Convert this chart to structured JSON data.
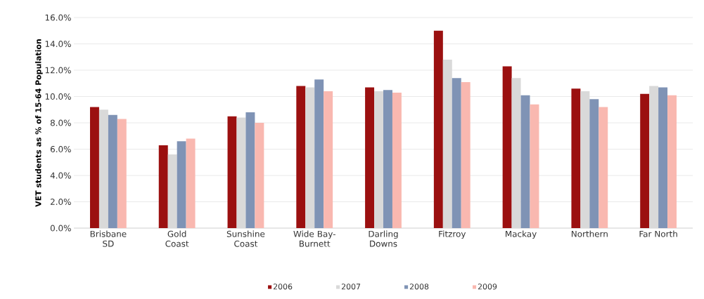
{
  "chart_data": {
    "type": "bar",
    "ylabel": "VET students as % of 15-64 Population",
    "categories": [
      "Brisbane SD",
      "Gold Coast",
      "Sunshine Coast",
      "Wide Bay-Burnett",
      "Darling Downs",
      "Fitzroy",
      "Mackay",
      "Northern",
      "Far North"
    ],
    "series": [
      {
        "name": "2006",
        "color": "#9b1010",
        "values": [
          9.2,
          6.3,
          8.5,
          10.8,
          10.7,
          15.0,
          12.3,
          10.6,
          10.2
        ]
      },
      {
        "name": "2007",
        "color": "#d9d9d9",
        "values": [
          9.0,
          5.6,
          8.4,
          10.7,
          10.4,
          12.8,
          11.4,
          10.4,
          10.8
        ]
      },
      {
        "name": "2008",
        "color": "#7f93b5",
        "values": [
          8.6,
          6.6,
          8.8,
          11.3,
          10.5,
          11.4,
          10.1,
          9.8,
          10.7
        ]
      },
      {
        "name": "2009",
        "color": "#f9b8b0",
        "values": [
          8.3,
          6.8,
          8.0,
          10.4,
          10.3,
          11.1,
          9.4,
          9.2,
          10.1
        ]
      }
    ],
    "ylim": [
      0,
      16
    ],
    "yticks": [
      {
        "value": 0,
        "label": "0.0%"
      },
      {
        "value": 2,
        "label": "2.0%"
      },
      {
        "value": 4,
        "label": "4.0%"
      },
      {
        "value": 6,
        "label": "6.0%"
      },
      {
        "value": 8,
        "label": "8.0%"
      },
      {
        "value": 10,
        "label": "10.0%"
      },
      {
        "value": 12,
        "label": "12.0%"
      },
      {
        "value": 14,
        "label": "14.0%"
      },
      {
        "value": 16,
        "label": "16.0%"
      }
    ],
    "grid": "y",
    "legend": "bottom"
  }
}
